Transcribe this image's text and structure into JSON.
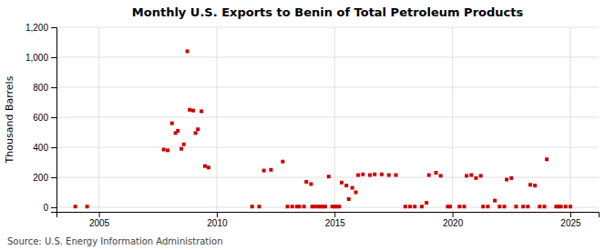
{
  "chart_data": {
    "type": "scatter",
    "title": "Monthly U.S. Exports to Benin of Total Petroleum Products",
    "y_label": "Thousand Barrels",
    "annotation": "Source: U.S. Energy Information Administration",
    "color": "#cc0000",
    "marker": "square",
    "grid": true,
    "xlim": [
      2003.2,
      2026.2
    ],
    "xticks": [
      2005,
      2010,
      2015,
      2020,
      2025
    ],
    "ylim": [
      -30,
      1200
    ],
    "yticks": [
      0,
      200,
      400,
      600,
      800,
      {
        "value": 1000,
        "label": "1,000"
      },
      {
        "value": 1200,
        "label": "1,200"
      }
    ],
    "x": [
      2004.0,
      2004.5,
      2007.75,
      2007.92,
      2008.1,
      2008.25,
      2008.35,
      2008.5,
      2008.6,
      2008.75,
      2008.85,
      2009.0,
      2009.1,
      2009.2,
      2009.35,
      2009.5,
      2009.65,
      2011.5,
      2011.8,
      2012.0,
      2012.3,
      2012.8,
      2013.0,
      2013.2,
      2013.4,
      2013.5,
      2013.7,
      2013.8,
      2014.0,
      2014.05,
      2014.15,
      2014.3,
      2014.4,
      2014.5,
      2014.6,
      2014.75,
      2014.9,
      2015.0,
      2015.1,
      2015.2,
      2015.3,
      2015.5,
      2015.6,
      2015.75,
      2015.9,
      2016.0,
      2016.2,
      2016.5,
      2016.7,
      2017.0,
      2017.3,
      2017.6,
      2018.0,
      2018.2,
      2018.4,
      2018.7,
      2018.9,
      2019.0,
      2019.3,
      2019.5,
      2019.8,
      2019.9,
      2020.3,
      2020.5,
      2020.6,
      2020.8,
      2021.0,
      2021.2,
      2021.3,
      2021.5,
      2021.8,
      2022.0,
      2022.2,
      2022.3,
      2022.5,
      2022.7,
      2023.0,
      2023.2,
      2023.3,
      2023.5,
      2023.7,
      2023.9,
      2024.0,
      2024.4,
      2024.5,
      2024.6,
      2024.8,
      2025.0
    ],
    "values": [
      5,
      5,
      385,
      380,
      560,
      495,
      510,
      390,
      420,
      1040,
      650,
      645,
      495,
      520,
      640,
      275,
      265,
      5,
      5,
      245,
      250,
      305,
      5,
      5,
      5,
      5,
      5,
      170,
      155,
      5,
      5,
      5,
      5,
      5,
      5,
      205,
      5,
      5,
      5,
      5,
      165,
      145,
      55,
      130,
      100,
      215,
      220,
      215,
      220,
      220,
      215,
      215,
      5,
      5,
      5,
      5,
      30,
      215,
      230,
      210,
      5,
      5,
      5,
      5,
      210,
      215,
      195,
      210,
      5,
      5,
      45,
      5,
      5,
      185,
      195,
      5,
      5,
      5,
      150,
      145,
      5,
      5,
      320,
      5,
      5,
      5,
      5,
      5
    ]
  }
}
